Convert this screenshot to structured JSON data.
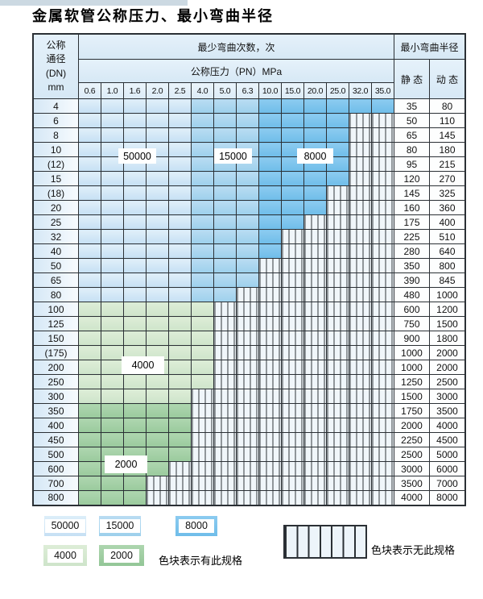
{
  "title": "金属软管公称压力、最小弯曲半径",
  "table": {
    "corner_header": [
      "公称",
      "通径",
      "(DN)",
      "mm"
    ],
    "bend_cycles_header": "最少弯曲次数，次",
    "bend_radius_header": "最小弯曲半径",
    "pressure_header": "公称压力（PN）MPa",
    "static_header": "静 态",
    "dynamic_header": "动 态",
    "pressures": [
      "0.6",
      "1.0",
      "1.6",
      "2.0",
      "2.5",
      "4.0",
      "5.0",
      "6.3",
      "10.0",
      "15.0",
      "20.0",
      "25.0",
      "32.0",
      "35.0"
    ],
    "rows": [
      {
        "dn": "4",
        "zone": "blue",
        "max_pn": "35.0",
        "max_pn_index": 13,
        "static": "35",
        "dynamic": "80"
      },
      {
        "dn": "6",
        "zone": "blue",
        "max_pn": "25.0",
        "max_pn_index": 11,
        "static": "50",
        "dynamic": "110"
      },
      {
        "dn": "8",
        "zone": "blue",
        "max_pn": "25.0",
        "max_pn_index": 11,
        "static": "65",
        "dynamic": "145"
      },
      {
        "dn": "10",
        "zone": "blue",
        "max_pn": "25.0",
        "max_pn_index": 11,
        "static": "80",
        "dynamic": "180"
      },
      {
        "dn": "(12)",
        "zone": "blue",
        "max_pn": "25.0",
        "max_pn_index": 11,
        "static": "95",
        "dynamic": "215"
      },
      {
        "dn": "15",
        "zone": "blue",
        "max_pn": "25.0",
        "max_pn_index": 11,
        "static": "120",
        "dynamic": "270"
      },
      {
        "dn": "(18)",
        "zone": "blue",
        "max_pn": "20.0",
        "max_pn_index": 10,
        "static": "145",
        "dynamic": "325"
      },
      {
        "dn": "20",
        "zone": "blue",
        "max_pn": "20.0",
        "max_pn_index": 10,
        "static": "160",
        "dynamic": "360"
      },
      {
        "dn": "25",
        "zone": "blue",
        "max_pn": "15.0",
        "max_pn_index": 9,
        "static": "175",
        "dynamic": "400"
      },
      {
        "dn": "32",
        "zone": "blue",
        "max_pn": "10.0",
        "max_pn_index": 8,
        "static": "225",
        "dynamic": "510"
      },
      {
        "dn": "40",
        "zone": "blue",
        "max_pn": "10.0",
        "max_pn_index": 8,
        "static": "280",
        "dynamic": "640"
      },
      {
        "dn": "50",
        "zone": "blue",
        "max_pn": "6.3",
        "max_pn_index": 7,
        "static": "350",
        "dynamic": "800"
      },
      {
        "dn": "65",
        "zone": "blue",
        "max_pn": "6.3",
        "max_pn_index": 7,
        "static": "390",
        "dynamic": "845"
      },
      {
        "dn": "80",
        "zone": "blue",
        "max_pn": "5.0",
        "max_pn_index": 6,
        "static": "480",
        "dynamic": "1000"
      },
      {
        "dn": "100",
        "zone": "green_4000",
        "max_pn": "4.0",
        "max_pn_index": 5,
        "static": "600",
        "dynamic": "1200"
      },
      {
        "dn": "125",
        "zone": "green_4000",
        "max_pn": "4.0",
        "max_pn_index": 5,
        "static": "750",
        "dynamic": "1500"
      },
      {
        "dn": "150",
        "zone": "green_4000",
        "max_pn": "4.0",
        "max_pn_index": 5,
        "static": "900",
        "dynamic": "1800"
      },
      {
        "dn": "(175)",
        "zone": "green_4000",
        "max_pn": "4.0",
        "max_pn_index": 5,
        "static": "1000",
        "dynamic": "2000"
      },
      {
        "dn": "200",
        "zone": "green_4000",
        "max_pn": "4.0",
        "max_pn_index": 5,
        "static": "1000",
        "dynamic": "2000"
      },
      {
        "dn": "250",
        "zone": "green_4000",
        "max_pn": "4.0",
        "max_pn_index": 5,
        "static": "1250",
        "dynamic": "2500"
      },
      {
        "dn": "300",
        "zone": "green_4000",
        "max_pn": "2.5",
        "max_pn_index": 4,
        "static": "1500",
        "dynamic": "3000"
      },
      {
        "dn": "350",
        "zone": "green_2000",
        "max_pn": "2.5",
        "max_pn_index": 4,
        "static": "1750",
        "dynamic": "3500"
      },
      {
        "dn": "400",
        "zone": "green_2000",
        "max_pn": "2.5",
        "max_pn_index": 4,
        "static": "2000",
        "dynamic": "4000"
      },
      {
        "dn": "450",
        "zone": "green_2000",
        "max_pn": "2.5",
        "max_pn_index": 4,
        "static": "2250",
        "dynamic": "4500"
      },
      {
        "dn": "500",
        "zone": "green_2000",
        "max_pn": "2.5",
        "max_pn_index": 4,
        "static": "2500",
        "dynamic": "5000"
      },
      {
        "dn": "600",
        "zone": "green_2000",
        "max_pn": "2.0",
        "max_pn_index": 3,
        "static": "3000",
        "dynamic": "6000"
      },
      {
        "dn": "700",
        "zone": "green_2000",
        "max_pn": "1.6",
        "max_pn_index": 2,
        "static": "3500",
        "dynamic": "7000"
      },
      {
        "dn": "800",
        "zone": "green_2000",
        "max_pn": "1.6",
        "max_pn_index": 2,
        "static": "4000",
        "dynamic": "8000"
      }
    ]
  },
  "overlays": [
    {
      "text": "50000"
    },
    {
      "text": "15000"
    },
    {
      "text": "8000"
    },
    {
      "text": "4000"
    },
    {
      "text": "2000"
    }
  ],
  "legend": {
    "items": [
      {
        "label": "50000",
        "color": "#cfe5f6"
      },
      {
        "label": "15000",
        "color": "#a9d4ee"
      },
      {
        "label": "8000",
        "color": "#7cc3ec"
      },
      {
        "label": "4000",
        "color": "#d6e8d2"
      },
      {
        "label": "2000",
        "color": "#a2cfa4"
      }
    ],
    "has_spec_note": "色块表示有此规格",
    "no_spec_note": "色块表示无此规格"
  },
  "colors": {
    "cycles_50000": "#cfe5f6",
    "cycles_15000": "#a9d4ee",
    "cycles_8000": "#7cc3ec",
    "cycles_4000": "#d6e8d2",
    "cycles_2000": "#a2cfa4",
    "grid_line": "#2b3035",
    "no_spec_stripe_bg": "#f0f6fa"
  }
}
